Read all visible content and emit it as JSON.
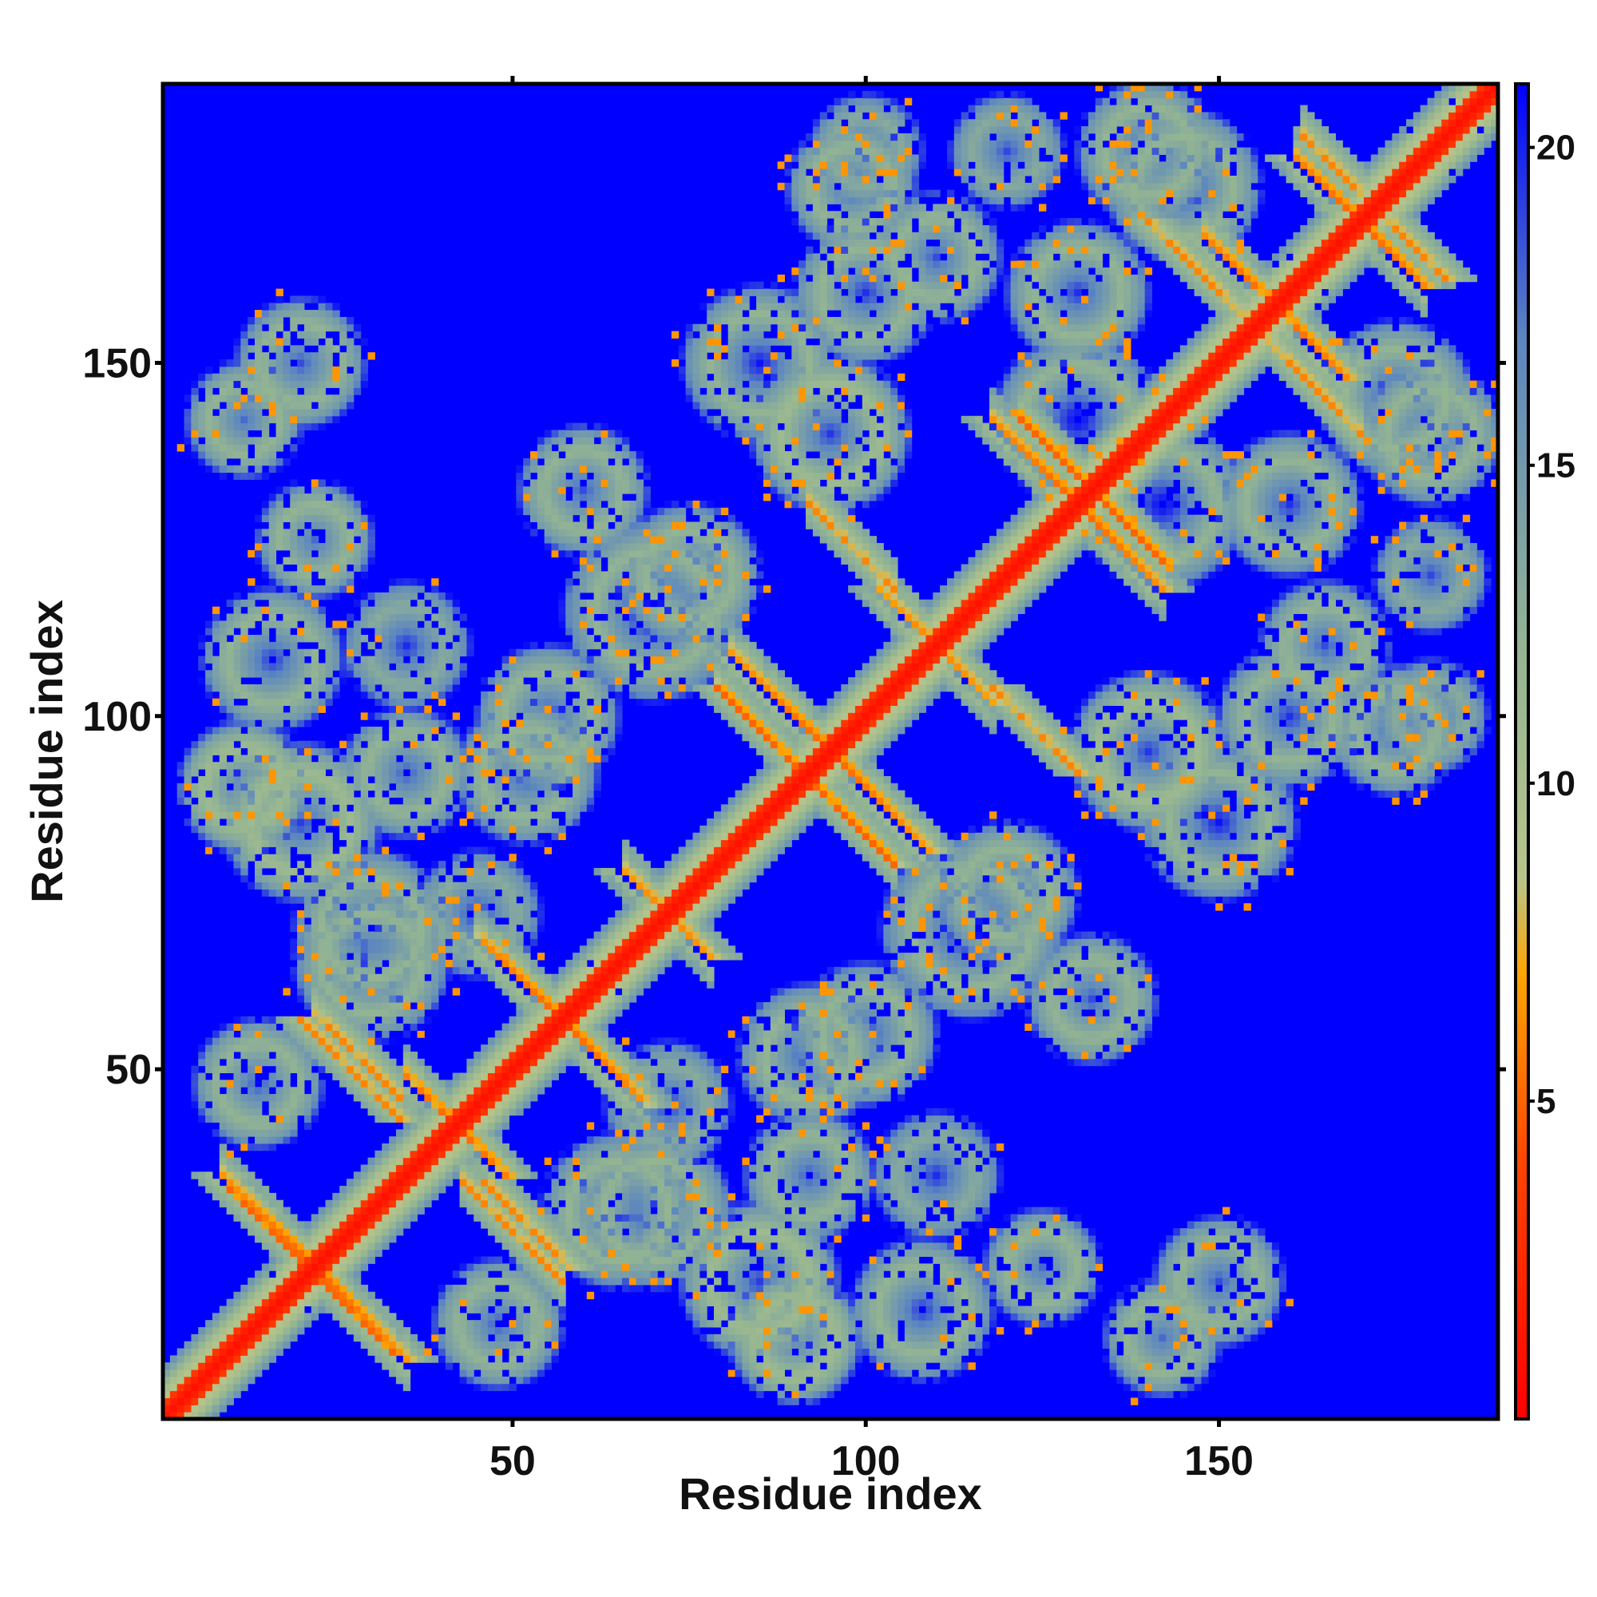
{
  "chart_data": {
    "type": "heatmap",
    "title": "",
    "xlabel": "Residue index",
    "ylabel": "Residue index",
    "n_residues": 189,
    "xlim": [
      1,
      189
    ],
    "ylim": [
      1,
      189
    ],
    "x_ticks": [
      50,
      100,
      150
    ],
    "x_tick_labels": [
      "50",
      "100",
      "150"
    ],
    "y_ticks": [
      50,
      100,
      150
    ],
    "y_tick_labels": [
      "50",
      "100",
      "150"
    ],
    "colorbar": {
      "min": 0,
      "max": 21,
      "ticks": [
        5,
        10,
        15,
        20
      ],
      "tick_labels": [
        "5",
        "10",
        "15",
        "20"
      ],
      "stops": [
        {
          "value": 0,
          "color": "#ff0000"
        },
        {
          "value": 4,
          "color": "#ff4400"
        },
        {
          "value": 7,
          "color": "#ffa500"
        },
        {
          "value": 8.5,
          "color": "#b8c58a"
        },
        {
          "value": 12,
          "color": "#94b592"
        },
        {
          "value": 17,
          "color": "#5c86c0"
        },
        {
          "value": 21,
          "color": "#0000ff"
        }
      ]
    },
    "background_value": 21,
    "features": {
      "diagonal": {
        "core_value": 1,
        "halo_width": 3
      },
      "antidiagonal_contacts": [
        {
          "center": [
            22,
            22
          ],
          "half_length": 13,
          "value": 5
        },
        {
          "center": [
            42,
            42
          ],
          "half_length": 7,
          "value": 5
        },
        {
          "center": [
            57,
            57
          ],
          "half_length": 12,
          "value": 5
        },
        {
          "center": [
            72,
            72
          ],
          "half_length": 6,
          "value": 6
        },
        {
          "center": [
            95,
            95
          ],
          "half_length": 14,
          "value": 5
        },
        {
          "center": [
            110,
            110
          ],
          "half_length": 8,
          "value": 6
        },
        {
          "center": [
            130,
            130
          ],
          "half_length": 12,
          "value": 5
        },
        {
          "center": [
            158,
            158
          ],
          "half_length": 10,
          "value": 5
        },
        {
          "center": [
            170,
            170
          ],
          "half_length": 9,
          "value": 5
        }
      ],
      "parallel_contacts": [
        {
          "from": [
            10,
            33
          ],
          "to": [
            26,
            17
          ],
          "value": 5
        },
        {
          "from": [
            20,
            57
          ],
          "to": [
            34,
            43
          ],
          "value": 6
        },
        {
          "from": [
            46,
            34
          ],
          "to": [
            58,
            22
          ],
          "value": 6
        },
        {
          "from": [
            79,
            104
          ],
          "to": [
            104,
            79
          ],
          "value": 5
        },
        {
          "from": [
            118,
            104
          ],
          "to": [
            130,
            92
          ],
          "value": 6
        },
        {
          "from": [
            122,
            142
          ],
          "to": [
            142,
            122
          ],
          "value": 5
        },
        {
          "from": [
            140,
            170
          ],
          "to": [
            164,
            146
          ],
          "value": 6
        },
        {
          "from": [
            165,
            179
          ],
          "to": [
            182,
            162
          ],
          "value": 6
        }
      ],
      "contact_clusters": [
        {
          "center": [
            12,
            90
          ],
          "radius": 8,
          "value": 11
        },
        {
          "center": [
            12,
            142
          ],
          "radius": 7,
          "value": 12
        },
        {
          "center": [
            16,
            108
          ],
          "radius": 9,
          "value": 12
        },
        {
          "center": [
            30,
            70
          ],
          "radius": 10,
          "value": 12
        },
        {
          "center": [
            35,
            110
          ],
          "radius": 8,
          "value": 13
        },
        {
          "center": [
            48,
            14
          ],
          "radius": 8,
          "value": 12
        },
        {
          "center": [
            52,
            92
          ],
          "radius": 9,
          "value": 12
        },
        {
          "center": [
            65,
            30
          ],
          "radius": 10,
          "value": 12
        },
        {
          "center": [
            70,
            115
          ],
          "radius": 12,
          "value": 12
        },
        {
          "center": [
            72,
            45
          ],
          "radius": 8,
          "value": 13
        },
        {
          "center": [
            85,
            20
          ],
          "radius": 10,
          "value": 11
        },
        {
          "center": [
            85,
            150
          ],
          "radius": 10,
          "value": 12
        },
        {
          "center": [
            92,
            35
          ],
          "radius": 8,
          "value": 12
        },
        {
          "center": [
            100,
            55
          ],
          "radius": 9,
          "value": 12
        },
        {
          "center": [
            98,
            175
          ],
          "radius": 8,
          "value": 12
        },
        {
          "center": [
            120,
            75
          ],
          "radius": 9,
          "value": 12
        },
        {
          "center": [
            125,
            22
          ],
          "radius": 7,
          "value": 12
        },
        {
          "center": [
            132,
            60
          ],
          "radius": 8,
          "value": 12
        },
        {
          "center": [
            140,
            95
          ],
          "radius": 10,
          "value": 11
        },
        {
          "center": [
            142,
            130
          ],
          "radius": 11,
          "value": 12
        },
        {
          "center": [
            150,
            20
          ],
          "radius": 8,
          "value": 12
        },
        {
          "center": [
            160,
            100
          ],
          "radius": 9,
          "value": 12
        },
        {
          "center": [
            165,
            110
          ],
          "radius": 8,
          "value": 12
        },
        {
          "center": [
            180,
            100
          ],
          "radius": 7,
          "value": 13
        },
        {
          "center": [
            145,
            175
          ],
          "radius": 10,
          "value": 12
        },
        {
          "center": [
            180,
            140
          ],
          "radius": 9,
          "value": 12
        },
        {
          "center": [
            180,
            120
          ],
          "radius": 7,
          "value": 13
        },
        {
          "center": [
            130,
            160
          ],
          "radius": 9,
          "value": 12
        }
      ]
    }
  }
}
